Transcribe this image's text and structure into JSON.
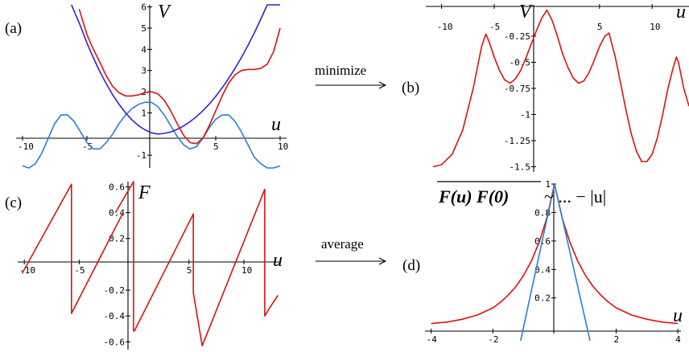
{
  "arrows": {
    "minimize": "minimize",
    "average": "average"
  },
  "correlation_label": {
    "lhs": "F(u) F(0)",
    "rhs": "~ ... − |u|"
  },
  "colors": {
    "red": "#e01010",
    "blue": "#2a7fd8",
    "navy": "#3b1cd0"
  },
  "chart_data": [
    {
      "panel": "(a)",
      "type": "line",
      "ylabel": "V",
      "xlabel": "u",
      "xlim": [
        -10.5,
        10.5
      ],
      "ylim": [
        -1.6,
        6.1
      ],
      "xticks": [
        -10,
        -5,
        5,
        10
      ],
      "yticks": [
        -1,
        1,
        2,
        3,
        4,
        5,
        6
      ],
      "series": [
        {
          "color": "#2a7fd8",
          "x": [
            -10,
            -9.5,
            -9,
            -8.5,
            -8,
            -7.5,
            -7,
            -6.5,
            -6,
            -5.5,
            -5,
            -4.5,
            -4,
            -3.5,
            -3,
            -2.5,
            -2,
            -1.5,
            -1,
            -0.5,
            0,
            0.5,
            1,
            1.5,
            2,
            2.5,
            3,
            3.5,
            4,
            4.5,
            5,
            5.5,
            6,
            6.5,
            7,
            7.5,
            8,
            8.5,
            9,
            9.5,
            10
          ],
          "y": [
            -1.5,
            -1.6,
            -1.4,
            -0.9,
            -0.2,
            0.5,
            0.9,
            0.9,
            0.6,
            0.1,
            -0.4,
            -0.7,
            -0.7,
            -0.4,
            0.0,
            0.5,
            0.9,
            1.2,
            1.4,
            1.5,
            1.5,
            1.3,
            0.9,
            0.4,
            -0.1,
            -0.5,
            -0.7,
            -0.6,
            -0.2,
            0.3,
            0.7,
            0.9,
            0.9,
            0.6,
            0.1,
            -0.5,
            -1.1,
            -1.4,
            -1.6,
            -1.6,
            -1.5
          ]
        },
        {
          "color": "#3b1cd0",
          "x": [
            -6.2,
            -5.5,
            -5,
            -4.5,
            -4,
            -3.5,
            -3,
            -2.5,
            -2,
            -1.5,
            -1,
            -0.5,
            0,
            0.5,
            1,
            1.5,
            2,
            2.5,
            3,
            3.5,
            4,
            4.5,
            5,
            5.5,
            6,
            6.5,
            7,
            7.5,
            8,
            8.5,
            9,
            9.5,
            10
          ],
          "y": [
            6.1,
            5.1,
            4.3,
            3.6,
            2.95,
            2.38,
            1.85,
            1.4,
            1.0,
            0.67,
            0.4,
            0.2,
            0.06,
            0.0,
            0.03,
            0.1,
            0.22,
            0.38,
            0.58,
            0.82,
            1.1,
            1.42,
            1.78,
            2.18,
            2.62,
            3.1,
            3.62,
            4.18,
            4.78,
            5.42,
            6.1,
            6.1,
            6.1
          ]
        },
        {
          "color": "#e01010",
          "x": [
            -5.6,
            -5,
            -4.5,
            -4,
            -3.5,
            -3,
            -2.5,
            -2,
            -1.5,
            -1,
            -0.5,
            0,
            0.5,
            1,
            1.5,
            2,
            2.5,
            3,
            3.5,
            4,
            4.5,
            5,
            5.5,
            6,
            6.5,
            7,
            7.5,
            8,
            8.5,
            9,
            9.5,
            10
          ],
          "y": [
            5.9,
            4.7,
            4.0,
            3.4,
            2.75,
            2.25,
            1.95,
            1.8,
            1.8,
            1.85,
            1.95,
            2.0,
            1.9,
            1.6,
            1.1,
            0.5,
            -0.05,
            -0.4,
            -0.45,
            -0.2,
            0.4,
            1.1,
            1.8,
            2.4,
            2.8,
            3.0,
            3.05,
            3.05,
            3.1,
            3.3,
            3.9,
            5.0
          ]
        }
      ]
    },
    {
      "panel": "(b)",
      "type": "line",
      "ylabel": "V",
      "xlabel": "u",
      "xlim": [
        -11.5,
        13.5
      ],
      "ylim": [
        -1.55,
        0.05
      ],
      "xticks": [
        -10,
        -5,
        5,
        10
      ],
      "yticks": [
        -0.25,
        -0.5,
        -0.75,
        -1,
        -1.25,
        -1.5
      ],
      "series": [
        {
          "color": "#e01010",
          "x": [
            -10.8,
            -10,
            -9,
            -8,
            -7,
            -6.2,
            -5.8,
            -5.5,
            -5,
            -4.5,
            -4,
            -3.5,
            -3,
            -2.5,
            -2,
            -1.5,
            -1,
            -0.5,
            0,
            0.5,
            1,
            1.5,
            2,
            2.5,
            3,
            3.5,
            4,
            4.5,
            5,
            5.5,
            5.9,
            6.5,
            7,
            7.5,
            8,
            8.5,
            9,
            9.5,
            10,
            10.5,
            11,
            11.5,
            12,
            12.3,
            12.5,
            13,
            13.5
          ],
          "y": [
            -1.5,
            -1.48,
            -1.38,
            -1.15,
            -0.75,
            -0.35,
            -0.23,
            -0.3,
            -0.45,
            -0.58,
            -0.67,
            -0.7,
            -0.66,
            -0.58,
            -0.46,
            -0.33,
            -0.2,
            -0.08,
            0.0,
            -0.1,
            -0.25,
            -0.42,
            -0.55,
            -0.65,
            -0.7,
            -0.68,
            -0.6,
            -0.48,
            -0.35,
            -0.25,
            -0.22,
            -0.45,
            -0.7,
            -0.95,
            -1.18,
            -1.35,
            -1.45,
            -1.45,
            -1.38,
            -1.22,
            -1.0,
            -0.75,
            -0.55,
            -0.45,
            -0.5,
            -0.75,
            -0.92
          ]
        }
      ]
    },
    {
      "panel": "(c)",
      "type": "line",
      "ylabel": "F",
      "xlabel": "u",
      "xlim": [
        -10.6,
        13.3
      ],
      "ylim": [
        -0.66,
        0.64
      ],
      "xticks": [
        -10,
        -5,
        5,
        10
      ],
      "yticks": [
        0.6,
        0.4,
        0.2,
        -0.2,
        -0.4,
        -0.6
      ],
      "series": [
        {
          "color": "#e01010",
          "x": [
            -10.2,
            -5.7,
            -5.7,
            -1.0,
            -1.0
          ],
          "y": [
            -0.07,
            0.62,
            -0.38,
            0.4,
            0.4
          ]
        },
        {
          "color": "#e01010",
          "x": [
            0.0,
            5.4,
            5.4,
            6.2,
            11.9,
            11.9,
            12.4,
            13.1
          ],
          "y": [
            -0.52,
            0.39,
            -0.22,
            -0.63,
            0.58,
            -0.4,
            -0.33,
            -0.24
          ]
        },
        {
          "color": "#e01010",
          "x": [
            -1.7,
            -0.05,
            -0.05
          ],
          "y": [
            0.4,
            0.64,
            -0.52
          ]
        }
      ]
    },
    {
      "panel": "(d)",
      "type": "line",
      "xlabel": "u",
      "xlim": [
        -4.2,
        4.1
      ],
      "ylim": [
        -0.05,
        1.0
      ],
      "xticks": [
        -4,
        -2,
        2,
        4
      ],
      "yticks": [
        0.2,
        0.4,
        0.6,
        0.8,
        1
      ],
      "series": [
        {
          "color": "#e01010",
          "x": [
            -4,
            -3.5,
            -3,
            -2.5,
            -2,
            -1.75,
            -1.5,
            -1.25,
            -1,
            -0.75,
            -0.5,
            -0.25,
            0,
            0.25,
            0.5,
            0.75,
            1,
            1.25,
            1.5,
            1.75,
            2,
            2.5,
            3,
            3.5,
            4
          ],
          "y": [
            0.02,
            0.03,
            0.05,
            0.08,
            0.13,
            0.17,
            0.22,
            0.28,
            0.36,
            0.46,
            0.59,
            0.76,
            1.0,
            0.76,
            0.59,
            0.46,
            0.36,
            0.28,
            0.22,
            0.17,
            0.13,
            0.08,
            0.05,
            0.03,
            0.02
          ]
        },
        {
          "color": "#2a7fd8",
          "x": [
            -1.1,
            0,
            1.15
          ],
          "y": [
            -0.1,
            1.0,
            -0.1
          ]
        }
      ]
    }
  ]
}
